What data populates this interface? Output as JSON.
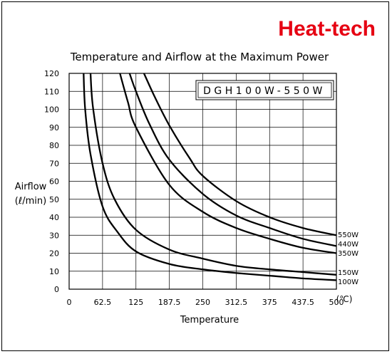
{
  "brand": {
    "name": "Heat-tech",
    "color": "#e60012"
  },
  "chart_data": {
    "type": "line",
    "title": "Temperature and Airflow at the Maximum Power",
    "model_label": "DGH100W-550W",
    "xlabel": "Temperature",
    "x_unit": "(℃)",
    "ylabel": "Airflow",
    "y_unit": "(ℓ/min)",
    "xlim": [
      0,
      500
    ],
    "ylim": [
      0,
      120
    ],
    "x_ticks": [
      "0",
      "62.5",
      "125",
      "187.5",
      "250",
      "312.5",
      "375",
      "437.5",
      "500"
    ],
    "y_ticks": [
      "0",
      "10",
      "20",
      "30",
      "40",
      "50",
      "60",
      "70",
      "80",
      "90",
      "100",
      "110",
      "120"
    ],
    "grid": true,
    "series": [
      {
        "name": "550W",
        "points": [
          [
            140,
            120
          ],
          [
            160,
            107
          ],
          [
            187.5,
            91
          ],
          [
            225,
            73
          ],
          [
            250,
            63
          ],
          [
            312.5,
            49
          ],
          [
            375,
            40
          ],
          [
            437.5,
            34
          ],
          [
            500,
            30
          ]
        ]
      },
      {
        "name": "440W",
        "points": [
          [
            113,
            120
          ],
          [
            125,
            110
          ],
          [
            150,
            92
          ],
          [
            187.5,
            72
          ],
          [
            250,
            53
          ],
          [
            312.5,
            41
          ],
          [
            375,
            34
          ],
          [
            437.5,
            28
          ],
          [
            500,
            24
          ]
        ]
      },
      {
        "name": "350W",
        "points": [
          [
            95,
            120
          ],
          [
            110,
            104
          ],
          [
            125,
            90
          ],
          [
            187.5,
            58
          ],
          [
            250,
            43
          ],
          [
            312.5,
            34
          ],
          [
            375,
            28
          ],
          [
            437.5,
            23
          ],
          [
            500,
            20
          ]
        ]
      },
      {
        "name": "150W",
        "points": [
          [
            40,
            120
          ],
          [
            45,
            100
          ],
          [
            62.5,
            70
          ],
          [
            85,
            50
          ],
          [
            125,
            33
          ],
          [
            187.5,
            22
          ],
          [
            250,
            17
          ],
          [
            312.5,
            13
          ],
          [
            375,
            11
          ],
          [
            437.5,
            9.5
          ],
          [
            500,
            8
          ]
        ]
      },
      {
        "name": "100W",
        "points": [
          [
            27,
            120
          ],
          [
            30,
            100
          ],
          [
            40,
            75
          ],
          [
            62.5,
            46
          ],
          [
            90,
            32
          ],
          [
            125,
            21
          ],
          [
            187.5,
            14
          ],
          [
            250,
            11
          ],
          [
            312.5,
            9
          ],
          [
            375,
            7.5
          ],
          [
            437.5,
            6
          ],
          [
            500,
            5
          ]
        ]
      }
    ]
  }
}
